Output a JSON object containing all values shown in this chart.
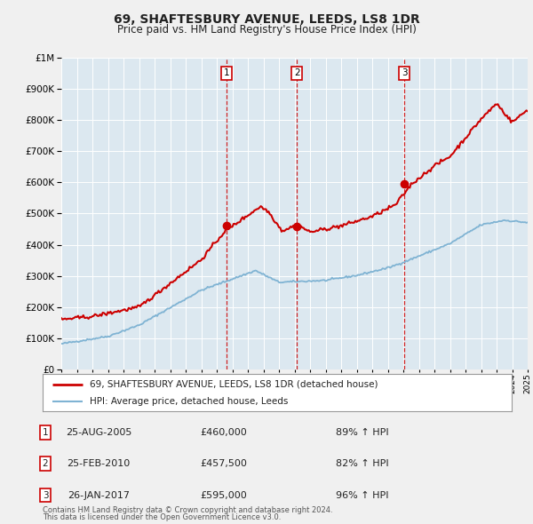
{
  "title": "69, SHAFTESBURY AVENUE, LEEDS, LS8 1DR",
  "subtitle": "Price paid vs. HM Land Registry's House Price Index (HPI)",
  "legend_line1": "69, SHAFTESBURY AVENUE, LEEDS, LS8 1DR (detached house)",
  "legend_line2": "HPI: Average price, detached house, Leeds",
  "footer1": "Contains HM Land Registry data © Crown copyright and database right 2024.",
  "footer2": "This data is licensed under the Open Government Licence v3.0.",
  "red_color": "#cc0000",
  "blue_color": "#7fb3d3",
  "bg_color": "#dce8f0",
  "fig_bg": "#f0f0f0",
  "grid_color": "#ffffff",
  "sale_markers": [
    {
      "label": "1",
      "year": 2005.65,
      "price": 460000,
      "date": "25-AUG-2005",
      "amount": "£460,000",
      "pct": "89% ↑ HPI"
    },
    {
      "label": "2",
      "year": 2010.15,
      "price": 457500,
      "date": "25-FEB-2010",
      "amount": "£457,500",
      "pct": "82% ↑ HPI"
    },
    {
      "label": "3",
      "year": 2017.07,
      "price": 595000,
      "date": "26-JAN-2017",
      "amount": "£595,000",
      "pct": "96% ↑ HPI"
    }
  ],
  "xmin": 1995,
  "xmax": 2025,
  "ymin": 0,
  "ymax": 1000000,
  "yticks": [
    0,
    100000,
    200000,
    300000,
    400000,
    500000,
    600000,
    700000,
    800000,
    900000,
    1000000
  ]
}
